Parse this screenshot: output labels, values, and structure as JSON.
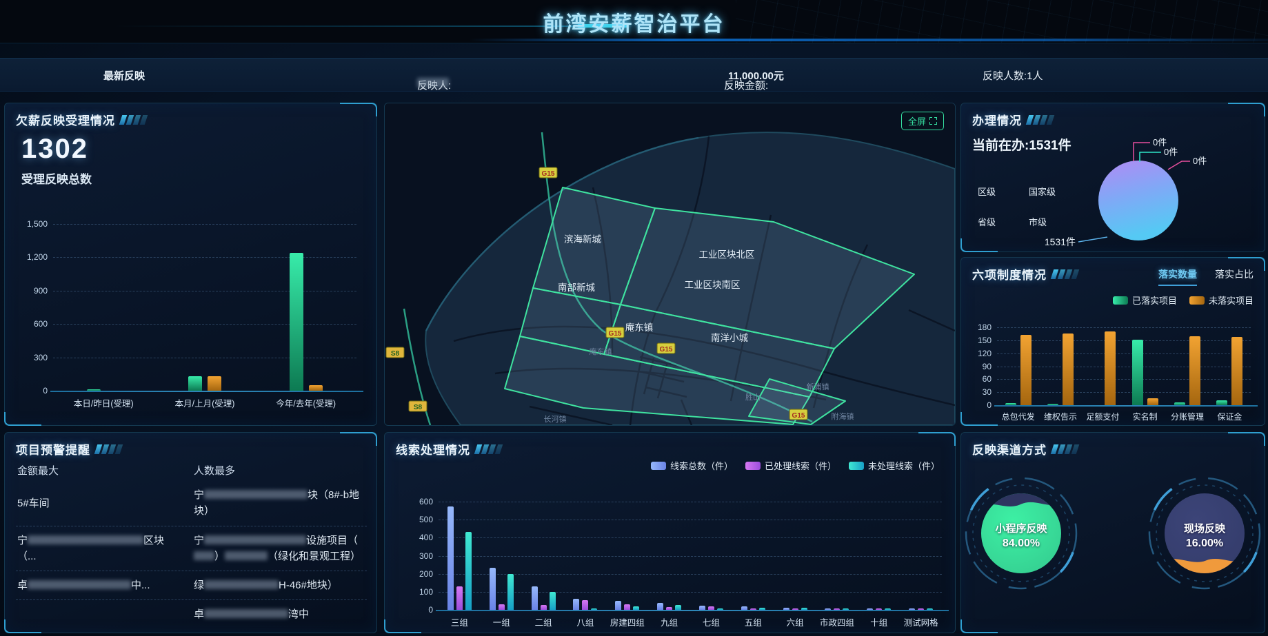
{
  "header": {
    "title": "前湾安薪智治平台"
  },
  "ticker": {
    "latest": "最新反映",
    "person_label": "反映人:",
    "person_value_redacted_width": 46,
    "amount_label": "反映金额:",
    "amount_value": "11,000.00元",
    "count_text": "反映人数:1人"
  },
  "panels": {
    "acceptance": {
      "title": "欠薪反映受理情况",
      "total": "1302",
      "total_label": "受理反映总数"
    },
    "map": {
      "fullscreen_label": "全屏",
      "district_labels": [
        "滨海新城",
        "工业区块北区",
        "南部新城",
        "工业区块南区",
        "庵东镇",
        "南洋小城"
      ],
      "town_labels": [
        "庵东镇",
        "长河镇",
        "新浦镇",
        "胜山",
        "附海镇"
      ],
      "road_badges": [
        "G15",
        "G15",
        "G15",
        "G15",
        "S8",
        "S8"
      ]
    },
    "handling": {
      "title": "办理情况",
      "current": "当前在办:1531件",
      "legend": [
        {
          "label": "区级",
          "color": "#7ba6f7"
        },
        {
          "label": "国家级",
          "color": "#2ee6c8"
        },
        {
          "label": "省级",
          "color": "#c98df0"
        },
        {
          "label": "市级",
          "color": "#e8489a"
        }
      ]
    },
    "six": {
      "title": "六项制度情况",
      "tabs": [
        "落实数量",
        "落实占比"
      ],
      "active_tab": 0
    },
    "warnings": {
      "title": "项目预警提醒",
      "col_left": "金额最大",
      "col_right": "人数最多",
      "rows": [
        {
          "left": [
            {
              "t": "5#车间"
            }
          ],
          "right": [
            {
              "t": "宁"
            },
            {
              "b": 150
            },
            {
              "t": "块（8#-b地块）"
            }
          ]
        },
        {
          "left": [
            {
              "t": "宁"
            },
            {
              "b": 168
            },
            {
              "t": "区块（..."
            }
          ],
          "right": [
            {
              "t": "宁"
            },
            {
              "b": 148
            },
            {
              "t": "设施项目（"
            },
            {
              "b": 30
            },
            {
              "t": "）"
            },
            {
              "b": 62
            },
            {
              "t": "（绿化和景观工程）"
            }
          ]
        },
        {
          "left": [
            {
              "t": "卓"
            },
            {
              "b": 150
            },
            {
              "t": "中..."
            }
          ],
          "right": [
            {
              "t": "绿"
            },
            {
              "b": 108
            },
            {
              "t": "H-46#地块）"
            }
          ]
        },
        {
          "left": [],
          "right": [
            {
              "t": "卓"
            },
            {
              "b": 122
            },
            {
              "t": "湾中"
            }
          ]
        }
      ]
    },
    "clues": {
      "title": "线索处理情况"
    },
    "channels": {
      "title": "反映渠道方式"
    }
  },
  "chart_data": [
    {
      "id": "acceptance",
      "type": "bar",
      "title": "欠薪反映受理情况",
      "categories": [
        "本日/昨日(受理)",
        "本月/上月(受理)",
        "今年/去年(受理)"
      ],
      "series": [
        {
          "name": "本期受理",
          "color": "green",
          "values": [
            2,
            130,
            1240
          ]
        },
        {
          "name": "上期对比",
          "color": "orange",
          "values": [
            0,
            128,
            48
          ]
        }
      ],
      "ylim": [
        0,
        1500
      ],
      "ytick_step": 300,
      "grid": true,
      "tick_commas": true
    },
    {
      "id": "six",
      "type": "bar",
      "title": "六项制度情况 - 落实数量",
      "categories": [
        "总包代发",
        "维权告示",
        "足额支付",
        "实名制",
        "分账管理",
        "保证金"
      ],
      "series": [
        {
          "name": "已落实项目",
          "color": "green",
          "values": [
            5,
            2,
            0,
            152,
            7,
            11
          ]
        },
        {
          "name": "未落实项目",
          "color": "orange",
          "values": [
            163,
            166,
            170,
            16,
            160,
            157
          ]
        }
      ],
      "ylim": [
        0,
        180
      ],
      "ytick_step": 30,
      "grid": true,
      "legend_position": "top-right"
    },
    {
      "id": "clues",
      "type": "bar",
      "title": "线索处理情况",
      "categories": [
        "三组",
        "一组",
        "二组",
        "八组",
        "房建四组",
        "九组",
        "七组",
        "五组",
        "六组",
        "市政四组",
        "十组",
        "测试网格"
      ],
      "series": [
        {
          "name": "线索总数（件）",
          "color": "blue",
          "values": [
            575,
            235,
            130,
            62,
            50,
            40,
            22,
            18,
            12,
            9,
            6,
            2
          ]
        },
        {
          "name": "已处理线索（件）",
          "color": "purple",
          "values": [
            130,
            30,
            25,
            55,
            32,
            15,
            20,
            5,
            4,
            6,
            5,
            1
          ]
        },
        {
          "name": "未处理线索（件）",
          "color": "cyan",
          "values": [
            430,
            200,
            100,
            6,
            18,
            25,
            2,
            12,
            10,
            5,
            3,
            1
          ]
        }
      ],
      "ylim": [
        0,
        600
      ],
      "ytick_step": 100,
      "grid": true,
      "legend_position": "top-right"
    },
    {
      "id": "handling_pie",
      "type": "pie",
      "title": "办理情况",
      "labels": [
        "区级",
        "国家级",
        "省级",
        "市级"
      ],
      "values": [
        1531,
        0,
        0,
        0
      ],
      "callouts": [
        "0件",
        "0件",
        "0件",
        "1531件"
      ]
    },
    {
      "id": "channels",
      "type": "gauge",
      "title": "反映渠道方式",
      "gauges": [
        {
          "label": "小程序反映",
          "display": "84.00%",
          "pct": 84,
          "fill": "#3df0a4",
          "wave": "#2e3560"
        },
        {
          "label": "现场反映",
          "display": "16.00%",
          "pct": 16,
          "fill": "#3c4478",
          "wave": "#f09a3c"
        }
      ]
    }
  ]
}
